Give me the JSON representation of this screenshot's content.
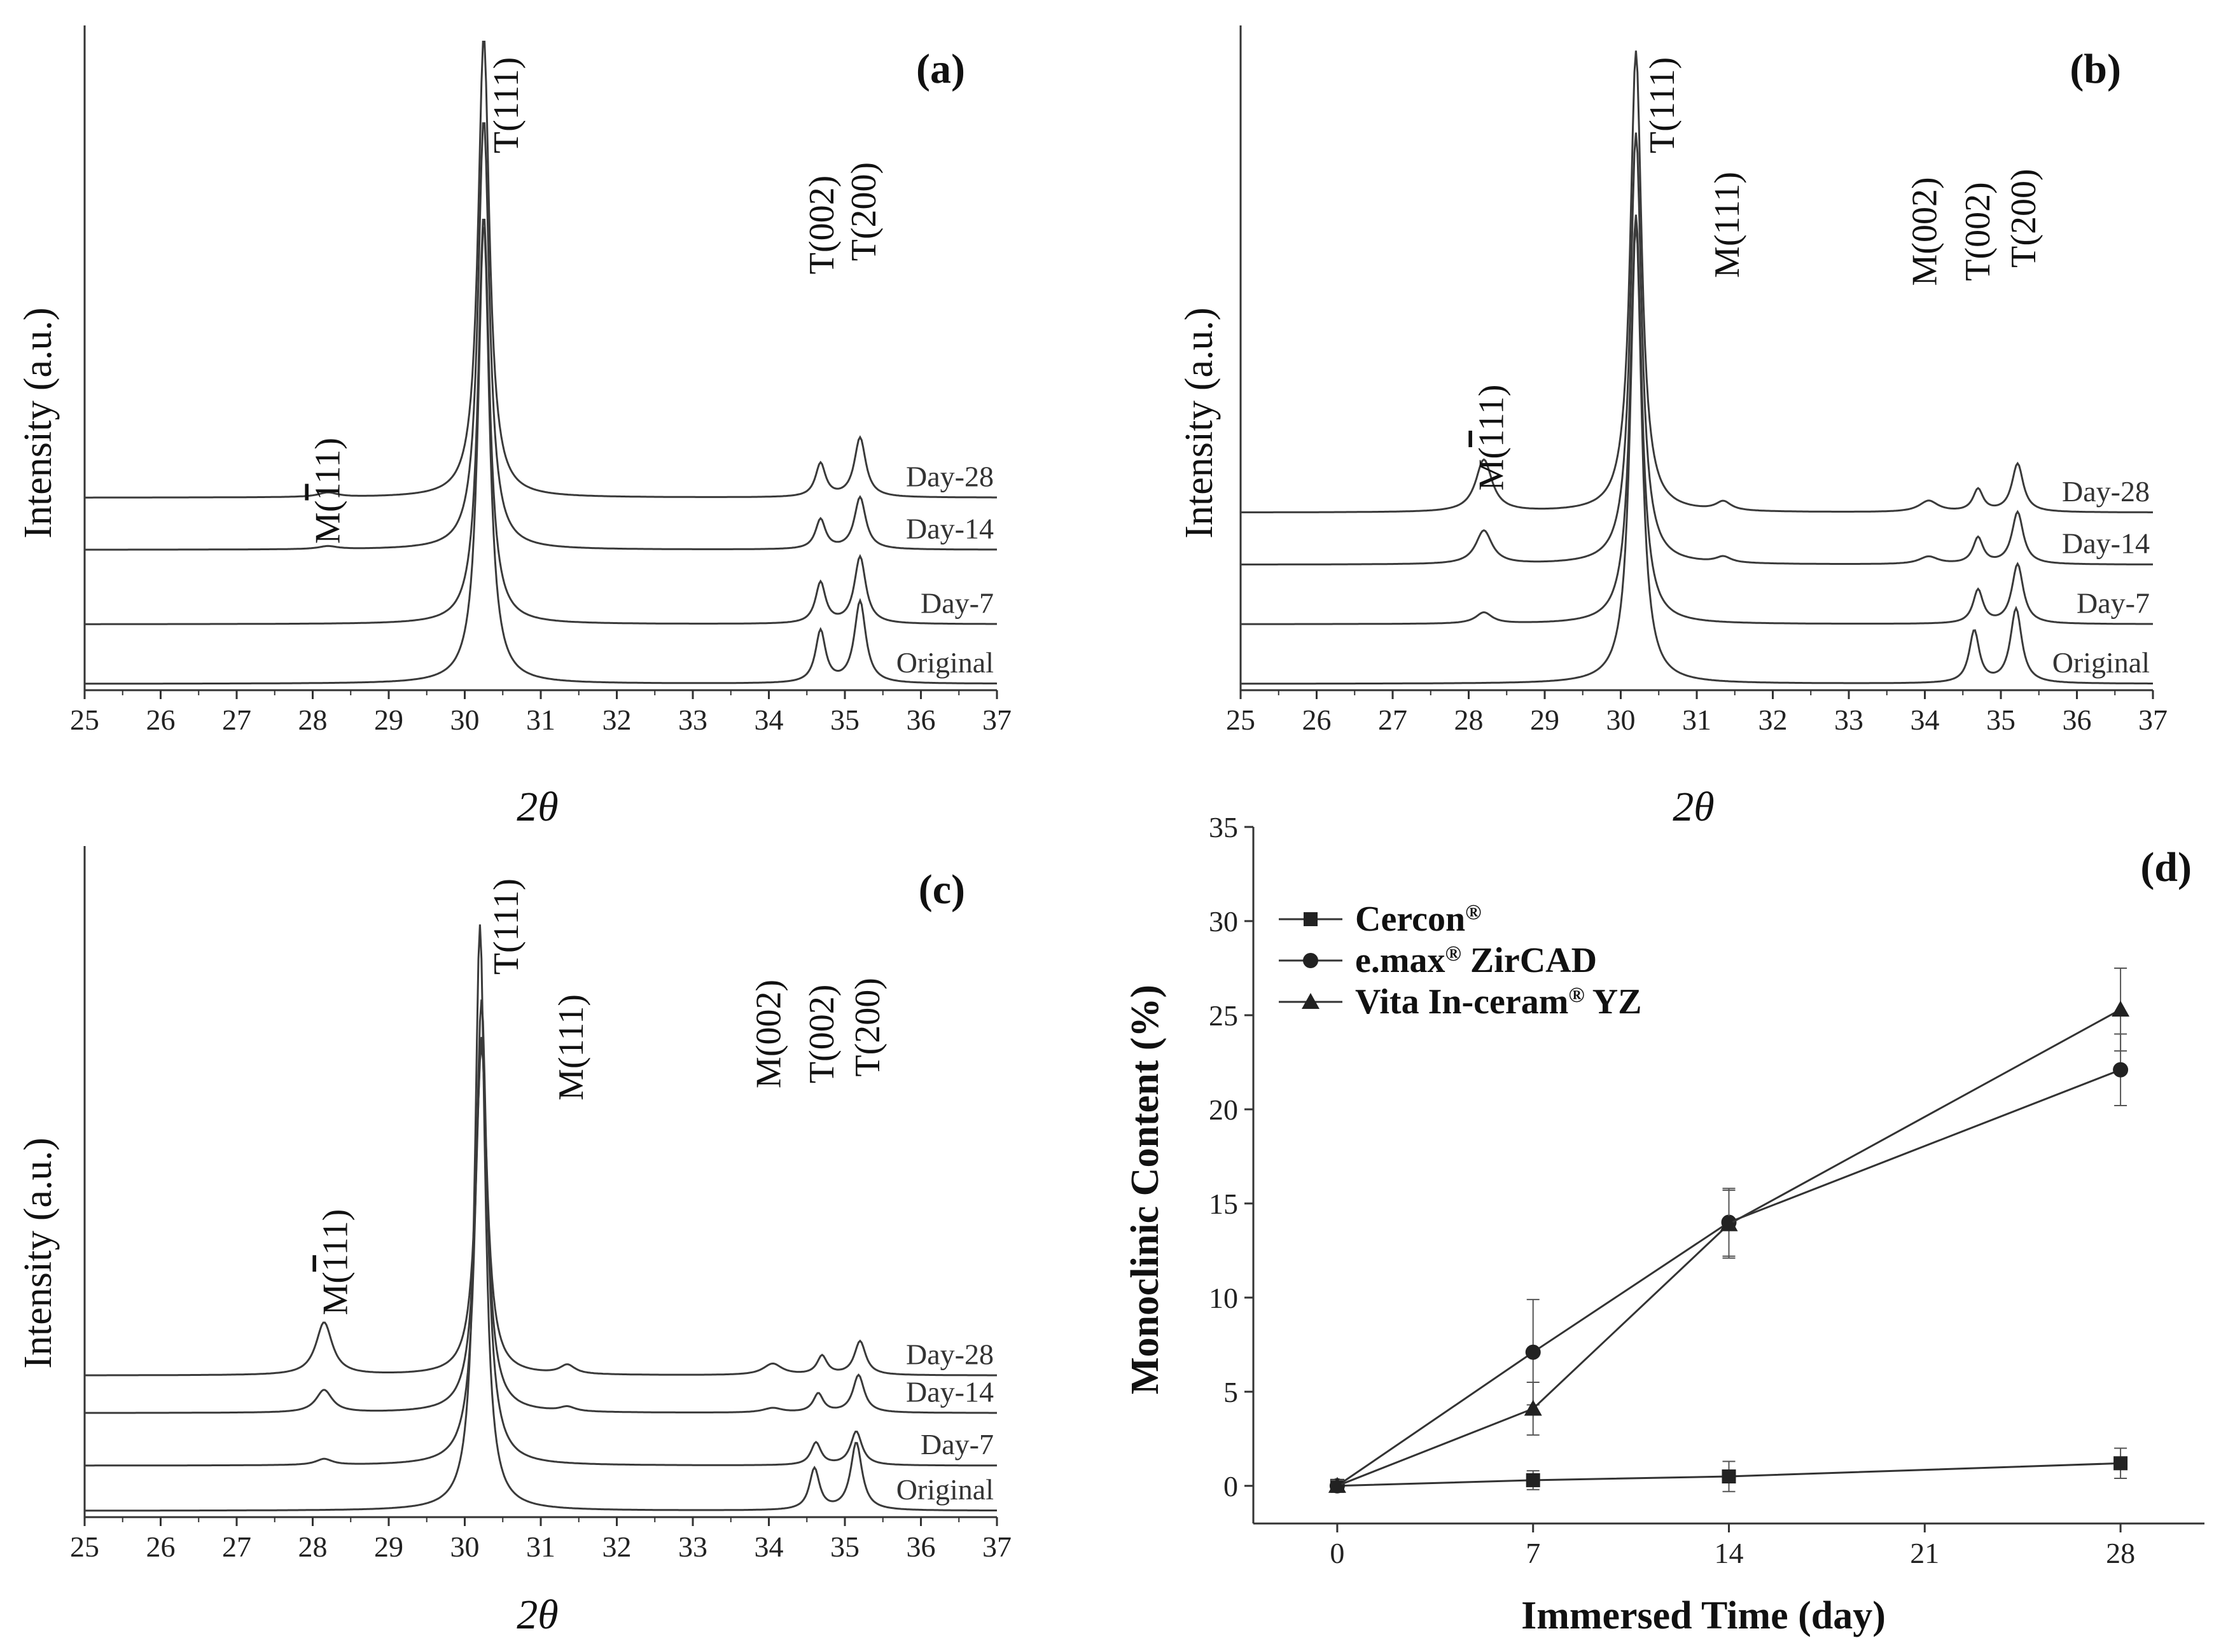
{
  "chart_data": [
    {
      "panel": "(a)",
      "type": "line",
      "xlabel": "2θ",
      "ylabel": "Intensity (a.u.)",
      "xlim": [
        25,
        37
      ],
      "xticks": [
        "25",
        "26",
        "27",
        "28",
        "29",
        "30",
        "31",
        "32",
        "33",
        "34",
        "35",
        "36",
        "37"
      ],
      "series": [
        {
          "name": "Original",
          "offset": 0,
          "peaks": [
            {
              "pos": 30.25,
              "height": 0.62,
              "width": 0.09
            },
            {
              "pos": 34.68,
              "height": 0.07,
              "width": 0.08
            },
            {
              "pos": 35.2,
              "height": 0.11,
              "width": 0.09
            }
          ]
        },
        {
          "name": "Day-7",
          "offset": 0.08,
          "peaks": [
            {
              "pos": 30.25,
              "height": 0.55,
              "width": 0.09
            },
            {
              "pos": 34.68,
              "height": 0.055,
              "width": 0.08
            },
            {
              "pos": 35.2,
              "height": 0.09,
              "width": 0.09
            }
          ]
        },
        {
          "name": "Day-14",
          "offset": 0.18,
          "peaks": [
            {
              "pos": 28.2,
              "height": 0.004,
              "width": 0.15
            },
            {
              "pos": 30.25,
              "height": 0.58,
              "width": 0.09
            },
            {
              "pos": 34.68,
              "height": 0.04,
              "width": 0.08
            },
            {
              "pos": 35.2,
              "height": 0.07,
              "width": 0.09
            }
          ]
        },
        {
          "name": "Day-28",
          "offset": 0.25,
          "peaks": [
            {
              "pos": 28.2,
              "height": 0.006,
              "width": 0.15
            },
            {
              "pos": 30.25,
              "height": 0.62,
              "width": 0.09
            },
            {
              "pos": 34.68,
              "height": 0.045,
              "width": 0.08
            },
            {
              "pos": 35.2,
              "height": 0.08,
              "width": 0.09
            }
          ]
        }
      ],
      "annotations": [
        {
          "text": "M(111)",
          "overline": true,
          "pos": 28.2
        },
        {
          "text": "T(111)",
          "pos": 30.55
        },
        {
          "text": "T(002)",
          "pos": 34.7
        },
        {
          "text": "T(200)",
          "pos": 35.25
        }
      ]
    },
    {
      "panel": "(b)",
      "type": "line",
      "xlabel": "2θ",
      "ylabel": "Intensity (a.u.)",
      "xlim": [
        25,
        37
      ],
      "xticks": [
        "25",
        "26",
        "27",
        "28",
        "29",
        "30",
        "31",
        "32",
        "33",
        "34",
        "35",
        "36",
        "37"
      ],
      "series": [
        {
          "name": "Original",
          "offset": 0,
          "peaks": [
            {
              "pos": 30.2,
              "height": 0.62,
              "width": 0.09
            },
            {
              "pos": 34.65,
              "height": 0.07,
              "width": 0.08
            },
            {
              "pos": 35.2,
              "height": 0.1,
              "width": 0.09
            }
          ]
        },
        {
          "name": "Day-7",
          "offset": 0.08,
          "peaks": [
            {
              "pos": 28.2,
              "height": 0.015,
              "width": 0.13
            },
            {
              "pos": 30.2,
              "height": 0.55,
              "width": 0.09
            },
            {
              "pos": 34.7,
              "height": 0.045,
              "width": 0.08
            },
            {
              "pos": 35.22,
              "height": 0.08,
              "width": 0.09
            }
          ]
        },
        {
          "name": "Day-14",
          "offset": 0.16,
          "peaks": [
            {
              "pos": 28.2,
              "height": 0.045,
              "width": 0.13
            },
            {
              "pos": 30.2,
              "height": 0.58,
              "width": 0.09
            },
            {
              "pos": 31.35,
              "height": 0.008,
              "width": 0.12
            },
            {
              "pos": 34.05,
              "height": 0.01,
              "width": 0.15
            },
            {
              "pos": 34.7,
              "height": 0.035,
              "width": 0.08
            },
            {
              "pos": 35.22,
              "height": 0.07,
              "width": 0.09
            }
          ]
        },
        {
          "name": "Day-28",
          "offset": 0.23,
          "peaks": [
            {
              "pos": 28.2,
              "height": 0.07,
              "width": 0.13
            },
            {
              "pos": 30.2,
              "height": 0.62,
              "width": 0.09
            },
            {
              "pos": 31.35,
              "height": 0.012,
              "width": 0.12
            },
            {
              "pos": 34.05,
              "height": 0.015,
              "width": 0.15
            },
            {
              "pos": 34.7,
              "height": 0.03,
              "width": 0.08
            },
            {
              "pos": 35.22,
              "height": 0.065,
              "width": 0.09
            }
          ]
        }
      ],
      "annotations": [
        {
          "text": "M(111)",
          "overline": true,
          "pos": 28.3
        },
        {
          "text": "T(111)",
          "pos": 30.55
        },
        {
          "text": "M(111)",
          "pos": 31.4
        },
        {
          "text": "M(002)",
          "pos": 34.0
        },
        {
          "text": "T(002)",
          "pos": 34.7
        },
        {
          "text": "T(200)",
          "pos": 35.3
        }
      ]
    },
    {
      "panel": "(c)",
      "type": "line",
      "xlabel": "2θ",
      "ylabel": "Intensity (a.u.)",
      "xlim": [
        25,
        37
      ],
      "xticks": [
        "25",
        "26",
        "27",
        "28",
        "29",
        "30",
        "31",
        "32",
        "33",
        "34",
        "35",
        "36",
        "37"
      ],
      "series": [
        {
          "name": "Original",
          "offset": 0,
          "peaks": [
            {
              "pos": 30.2,
              "height": 0.78,
              "width": 0.08
            },
            {
              "pos": 34.6,
              "height": 0.055,
              "width": 0.08
            },
            {
              "pos": 35.15,
              "height": 0.09,
              "width": 0.09
            }
          ]
        },
        {
          "name": "Day-7",
          "offset": 0.06,
          "peaks": [
            {
              "pos": 28.15,
              "height": 0.008,
              "width": 0.13
            },
            {
              "pos": 30.22,
              "height": 0.62,
              "width": 0.09
            },
            {
              "pos": 34.62,
              "height": 0.03,
              "width": 0.08
            },
            {
              "pos": 35.15,
              "height": 0.045,
              "width": 0.09
            }
          ]
        },
        {
          "name": "Day-14",
          "offset": 0.13,
          "peaks": [
            {
              "pos": 28.15,
              "height": 0.03,
              "width": 0.13
            },
            {
              "pos": 30.22,
              "height": 0.5,
              "width": 0.09
            },
            {
              "pos": 31.35,
              "height": 0.006,
              "width": 0.12
            },
            {
              "pos": 34.05,
              "height": 0.006,
              "width": 0.15
            },
            {
              "pos": 34.65,
              "height": 0.025,
              "width": 0.08
            },
            {
              "pos": 35.18,
              "height": 0.05,
              "width": 0.09
            }
          ]
        },
        {
          "name": "Day-28",
          "offset": 0.18,
          "peaks": [
            {
              "pos": 28.15,
              "height": 0.07,
              "width": 0.13
            },
            {
              "pos": 30.22,
              "height": 0.44,
              "width": 0.09
            },
            {
              "pos": 31.35,
              "height": 0.012,
              "width": 0.12
            },
            {
              "pos": 34.05,
              "height": 0.015,
              "width": 0.15
            },
            {
              "pos": 34.7,
              "height": 0.025,
              "width": 0.08
            },
            {
              "pos": 35.2,
              "height": 0.045,
              "width": 0.09
            }
          ]
        }
      ],
      "annotations": [
        {
          "text": "M(111)",
          "overline": true,
          "pos": 28.3
        },
        {
          "text": "T(111)",
          "pos": 30.55
        },
        {
          "text": "M(111)",
          "pos": 31.4
        },
        {
          "text": "M(002)",
          "pos": 34.0
        },
        {
          "text": "T(002)",
          "pos": 34.7
        },
        {
          "text": "T(200)",
          "pos": 35.3
        }
      ]
    },
    {
      "panel": "(d)",
      "type": "line",
      "xlabel": "Immersed Time (day)",
      "ylabel": "Monoclinic Content (%)",
      "x": [
        0,
        7,
        14,
        28
      ],
      "xlim": [
        -3,
        31
      ],
      "ylim": [
        -2,
        35
      ],
      "xticks": [
        "0",
        "7",
        "14",
        "21",
        "28"
      ],
      "yticks": [
        "0",
        "5",
        "10",
        "15",
        "20",
        "25",
        "30",
        "35"
      ],
      "series": [
        {
          "name": "Cercon",
          "sup": "®",
          "rest": "",
          "marker": "square",
          "values": [
            0,
            0.3,
            0.5,
            1.2
          ],
          "errors": [
            0.3,
            0.5,
            0.8,
            0.8
          ]
        },
        {
          "name": "e.max",
          "sup": "®",
          "rest": " ZirCAD",
          "marker": "circle",
          "values": [
            0,
            7.1,
            14.0,
            22.1
          ],
          "errors": [
            0.3,
            2.8,
            1.8,
            1.9
          ]
        },
        {
          "name": "Vita In-ceram",
          "sup": "®",
          "rest": " YZ",
          "marker": "triangle",
          "values": [
            0,
            4.1,
            13.9,
            25.3
          ],
          "errors": [
            0.3,
            1.4,
            1.8,
            2.2
          ]
        }
      ]
    }
  ]
}
